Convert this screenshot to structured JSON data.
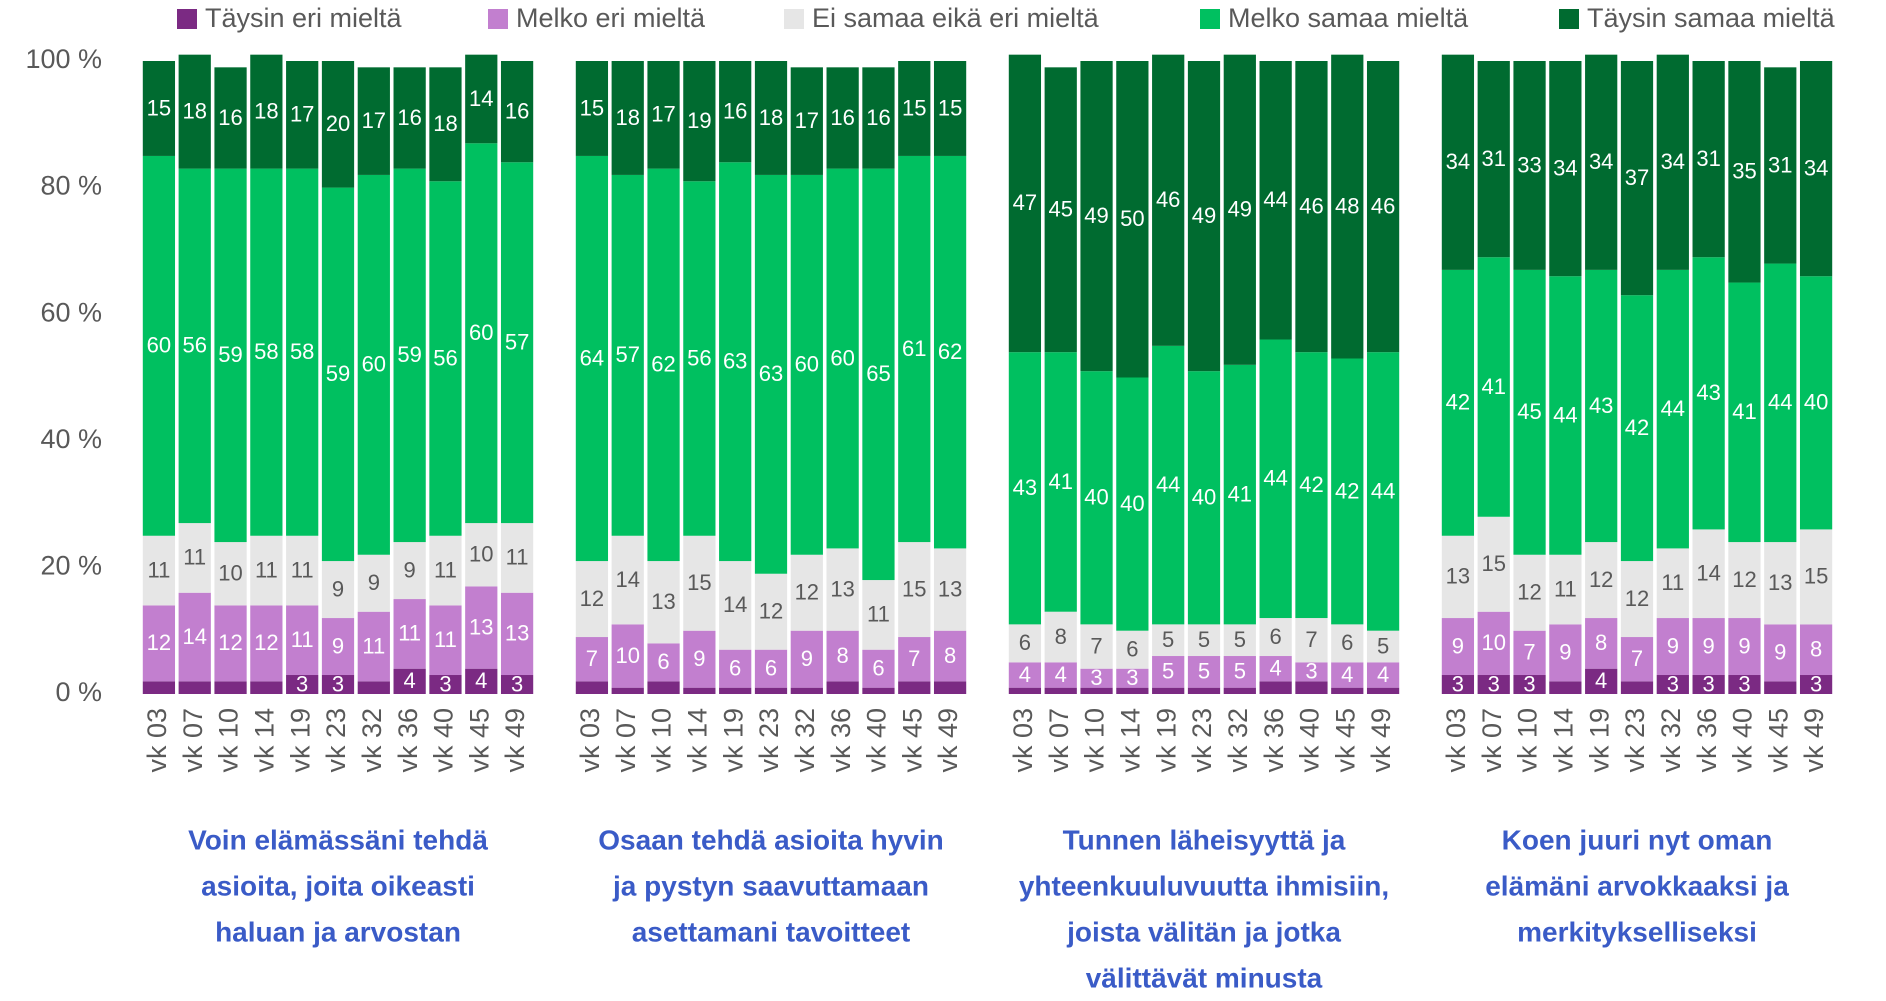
{
  "chart_data": [
    {
      "type": "stacked_bar",
      "title": [
        "Voin elämässäni tehdä",
        "asioita, joita oikeasti",
        "haluan ja arvostan"
      ],
      "categories": [
        "vk 03",
        "vk 07",
        "vk 10",
        "vk 14",
        "vk 19",
        "vk 23",
        "vk 32",
        "vk 36",
        "vk 40",
        "vk 45",
        "vk 49"
      ],
      "ylim": [
        0,
        100
      ],
      "yticks": [
        {
          "value": 0,
          "label": "0 %"
        },
        {
          "value": 20,
          "label": "20 %"
        },
        {
          "value": 40,
          "label": "40 %"
        },
        {
          "value": 60,
          "label": "60 %"
        },
        {
          "value": 80,
          "label": "80 %"
        },
        {
          "value": 100,
          "label": "100 %"
        }
      ],
      "series": [
        {
          "name": "Täysin eri mieltä",
          "color": "#7b2a83",
          "values": [
            2,
            2,
            2,
            2,
            3,
            3,
            2,
            4,
            3,
            4,
            3
          ]
        },
        {
          "name": "Melko eri mieltä",
          "color": "#c27fcf",
          "values": [
            12,
            14,
            12,
            12,
            11,
            9,
            11,
            11,
            11,
            13,
            13
          ]
        },
        {
          "name": "Ei samaa eikä eri mieltä",
          "color": "#e6e6e6",
          "values": [
            11,
            11,
            10,
            11,
            11,
            9,
            9,
            9,
            11,
            10,
            11
          ]
        },
        {
          "name": "Melko samaa mieltä",
          "color": "#00c060",
          "values": [
            60,
            56,
            59,
            58,
            58,
            59,
            60,
            59,
            56,
            60,
            57
          ]
        },
        {
          "name": "Täysin samaa mieltä",
          "color": "#006b30",
          "values": [
            15,
            18,
            16,
            18,
            17,
            20,
            17,
            16,
            18,
            14,
            16
          ]
        }
      ]
    },
    {
      "type": "stacked_bar",
      "title": [
        "Osaan tehdä asioita hyvin",
        "ja pystyn saavuttamaan",
        "asettamani tavoitteet"
      ],
      "categories": [
        "vk 03",
        "vk 07",
        "vk 10",
        "vk 14",
        "vk 19",
        "vk 23",
        "vk 32",
        "vk 36",
        "vk 40",
        "vk 45",
        "vk 49"
      ],
      "ylim": [
        0,
        100
      ],
      "series": [
        {
          "name": "Täysin eri mieltä",
          "color": "#7b2a83",
          "values": [
            2,
            1,
            2,
            1,
            1,
            1,
            1,
            2,
            1,
            2,
            2
          ]
        },
        {
          "name": "Melko eri mieltä",
          "color": "#c27fcf",
          "values": [
            7,
            10,
            6,
            9,
            6,
            6,
            9,
            8,
            6,
            7,
            8
          ]
        },
        {
          "name": "Ei samaa eikä eri mieltä",
          "color": "#e6e6e6",
          "values": [
            12,
            14,
            13,
            15,
            14,
            12,
            12,
            13,
            11,
            15,
            13
          ]
        },
        {
          "name": "Melko samaa mieltä",
          "color": "#00c060",
          "values": [
            64,
            57,
            62,
            56,
            63,
            63,
            60,
            60,
            65,
            61,
            62
          ]
        },
        {
          "name": "Täysin samaa mieltä",
          "color": "#006b30",
          "values": [
            15,
            18,
            17,
            19,
            16,
            18,
            17,
            16,
            16,
            15,
            15
          ]
        }
      ]
    },
    {
      "type": "stacked_bar",
      "title": [
        "Tunnen läheisyyttä ja",
        "yhteenkuuluvuutta ihmisiin,",
        "joista välitän ja jotka",
        "välittävät minusta"
      ],
      "categories": [
        "vk 03",
        "vk 07",
        "vk 10",
        "vk 14",
        "vk 19",
        "vk 23",
        "vk 32",
        "vk 36",
        "vk 40",
        "vk 45",
        "vk 49"
      ],
      "ylim": [
        0,
        100
      ],
      "series": [
        {
          "name": "Täysin eri mieltä",
          "color": "#7b2a83",
          "values": [
            1,
            1,
            1,
            1,
            1,
            1,
            1,
            2,
            2,
            1,
            1
          ]
        },
        {
          "name": "Melko eri mieltä",
          "color": "#c27fcf",
          "values": [
            4,
            4,
            3,
            3,
            5,
            5,
            5,
            4,
            3,
            4,
            4
          ]
        },
        {
          "name": "Ei samaa eikä eri mieltä",
          "color": "#e6e6e6",
          "values": [
            6,
            8,
            7,
            6,
            5,
            5,
            5,
            6,
            7,
            6,
            5
          ]
        },
        {
          "name": "Melko samaa mieltä",
          "color": "#00c060",
          "values": [
            43,
            41,
            40,
            40,
            44,
            40,
            41,
            44,
            42,
            42,
            44
          ]
        },
        {
          "name": "Täysin samaa mieltä",
          "color": "#006b30",
          "values": [
            47,
            45,
            49,
            50,
            46,
            49,
            49,
            44,
            46,
            48,
            46
          ]
        }
      ]
    },
    {
      "type": "stacked_bar",
      "title": [
        "Koen juuri nyt oman",
        "elämäni arvokkaaksi ja",
        "merkitykselliseksi"
      ],
      "categories": [
        "vk 03",
        "vk 07",
        "vk 10",
        "vk 14",
        "vk 19",
        "vk 23",
        "vk 32",
        "vk 36",
        "vk 40",
        "vk 45",
        "vk 49"
      ],
      "ylim": [
        0,
        100
      ],
      "series": [
        {
          "name": "Täysin eri mieltä",
          "color": "#7b2a83",
          "values": [
            3,
            3,
            3,
            2,
            4,
            2,
            3,
            3,
            3,
            2,
            3
          ]
        },
        {
          "name": "Melko eri mieltä",
          "color": "#c27fcf",
          "values": [
            9,
            10,
            7,
            9,
            8,
            7,
            9,
            9,
            9,
            9,
            8
          ]
        },
        {
          "name": "Ei samaa eikä eri mieltä",
          "color": "#e6e6e6",
          "values": [
            13,
            15,
            12,
            11,
            12,
            12,
            11,
            14,
            12,
            13,
            15
          ]
        },
        {
          "name": "Melko samaa mieltä",
          "color": "#00c060",
          "values": [
            42,
            41,
            45,
            44,
            43,
            42,
            44,
            43,
            41,
            44,
            40
          ]
        },
        {
          "name": "Täysin samaa mieltä",
          "color": "#006b30",
          "values": [
            34,
            31,
            33,
            34,
            34,
            37,
            34,
            31,
            35,
            31,
            34
          ]
        }
      ]
    }
  ]
}
